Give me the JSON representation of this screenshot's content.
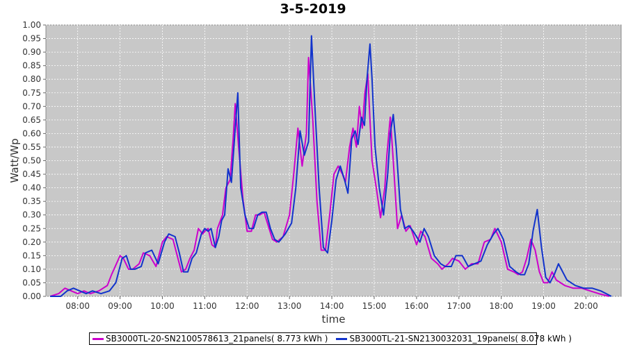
{
  "chart_data": {
    "type": "line",
    "title": "3-5-2019",
    "xlabel": "time",
    "ylabel": "Watt/Wp",
    "xlim": [
      7.25,
      20.83
    ],
    "ylim": [
      0,
      1.0
    ],
    "x_ticks": [
      8,
      9,
      10,
      11,
      12,
      13,
      14,
      15,
      16,
      17,
      18,
      19,
      20
    ],
    "x_tick_labels": [
      "08:00",
      "09:00",
      "10:00",
      "11:00",
      "12:00",
      "13:00",
      "14:00",
      "15:00",
      "16:00",
      "17:00",
      "18:00",
      "19:00",
      "20:00"
    ],
    "y_ticks": [
      0,
      0.05,
      0.1,
      0.15,
      0.2,
      0.25,
      0.3,
      0.35,
      0.4,
      0.45,
      0.5,
      0.55,
      0.6,
      0.65,
      0.7,
      0.75,
      0.8,
      0.85,
      0.9,
      0.95,
      1.0
    ],
    "y_tick_labels": [
      "0.00",
      "0.05",
      "0.10",
      "0.15",
      "0.20",
      "0.25",
      "0.30",
      "0.35",
      "0.40",
      "0.45",
      "0.50",
      "0.55",
      "0.60",
      "0.65",
      "0.70",
      "0.75",
      "0.80",
      "0.85",
      "0.90",
      "0.95",
      "1.00"
    ],
    "grid": true,
    "legend_position": "bottom",
    "series": [
      {
        "name": "SB3000TL-20-SN2100578613_21panels( 8.773 kWh )",
        "color": "#cc00cc",
        "x": [
          7.35,
          7.55,
          7.7,
          7.85,
          8.0,
          8.15,
          8.3,
          8.5,
          8.7,
          8.8,
          9.0,
          9.08,
          9.2,
          9.3,
          9.45,
          9.55,
          9.7,
          9.85,
          10.0,
          10.1,
          10.25,
          10.35,
          10.45,
          10.55,
          10.65,
          10.75,
          10.85,
          10.95,
          11.0,
          11.08,
          11.17,
          11.25,
          11.3,
          11.42,
          11.5,
          11.6,
          11.67,
          11.72,
          11.8,
          11.9,
          12.0,
          12.1,
          12.2,
          12.3,
          12.4,
          12.5,
          12.6,
          12.7,
          12.85,
          13.0,
          13.1,
          13.2,
          13.3,
          13.4,
          13.45,
          13.55,
          13.65,
          13.75,
          13.85,
          13.95,
          14.05,
          14.15,
          14.25,
          14.32,
          14.42,
          14.5,
          14.58,
          14.65,
          14.72,
          14.78,
          14.85,
          14.9,
          14.95,
          15.05,
          15.15,
          15.25,
          15.3,
          15.38,
          15.45,
          15.55,
          15.65,
          15.75,
          15.85,
          16.0,
          16.1,
          16.2,
          16.35,
          16.5,
          16.6,
          16.75,
          16.85,
          17.0,
          17.15,
          17.3,
          17.45,
          17.6,
          17.75,
          17.85,
          18.0,
          18.15,
          18.3,
          18.4,
          18.5,
          18.6,
          18.7,
          18.8,
          18.9,
          19.0,
          19.1,
          19.2,
          19.3,
          19.5,
          19.7,
          19.9,
          20.1,
          20.3,
          20.55
        ],
        "y": [
          0.0,
          0.01,
          0.03,
          0.02,
          0.01,
          0.02,
          0.01,
          0.02,
          0.04,
          0.08,
          0.15,
          0.14,
          0.1,
          0.1,
          0.12,
          0.16,
          0.15,
          0.11,
          0.2,
          0.22,
          0.21,
          0.15,
          0.09,
          0.1,
          0.14,
          0.17,
          0.25,
          0.23,
          0.24,
          0.25,
          0.19,
          0.18,
          0.25,
          0.3,
          0.4,
          0.43,
          0.58,
          0.71,
          0.55,
          0.36,
          0.24,
          0.24,
          0.3,
          0.3,
          0.31,
          0.26,
          0.21,
          0.2,
          0.22,
          0.3,
          0.45,
          0.62,
          0.48,
          0.6,
          0.88,
          0.65,
          0.35,
          0.17,
          0.17,
          0.3,
          0.45,
          0.48,
          0.45,
          0.42,
          0.55,
          0.62,
          0.55,
          0.7,
          0.62,
          0.75,
          0.82,
          0.65,
          0.5,
          0.4,
          0.29,
          0.4,
          0.52,
          0.66,
          0.5,
          0.25,
          0.3,
          0.24,
          0.26,
          0.19,
          0.24,
          0.22,
          0.14,
          0.12,
          0.1,
          0.12,
          0.14,
          0.13,
          0.1,
          0.12,
          0.12,
          0.2,
          0.21,
          0.25,
          0.2,
          0.1,
          0.09,
          0.08,
          0.09,
          0.14,
          0.21,
          0.17,
          0.09,
          0.05,
          0.05,
          0.09,
          0.06,
          0.04,
          0.03,
          0.03,
          0.02,
          0.01,
          0.0
        ]
      },
      {
        "name": "SB3000TL-21-SN2130032031_19panels( 8.078 kWh )",
        "color": "#1133cc",
        "x": [
          7.35,
          7.6,
          7.75,
          7.9,
          8.05,
          8.2,
          8.35,
          8.55,
          8.75,
          8.9,
          9.05,
          9.15,
          9.25,
          9.35,
          9.5,
          9.6,
          9.75,
          9.9,
          10.05,
          10.15,
          10.3,
          10.4,
          10.5,
          10.6,
          10.7,
          10.8,
          10.92,
          11.0,
          11.08,
          11.15,
          11.25,
          11.33,
          11.4,
          11.47,
          11.55,
          11.63,
          11.72,
          11.78,
          11.85,
          11.95,
          12.05,
          12.15,
          12.25,
          12.35,
          12.45,
          12.55,
          12.65,
          12.75,
          12.9,
          13.05,
          13.15,
          13.25,
          13.35,
          13.45,
          13.52,
          13.6,
          13.7,
          13.8,
          13.9,
          14.0,
          14.1,
          14.2,
          14.3,
          14.38,
          14.47,
          14.55,
          14.62,
          14.7,
          14.77,
          14.83,
          14.9,
          14.95,
          15.02,
          15.12,
          15.22,
          15.32,
          15.38,
          15.45,
          15.52,
          15.62,
          15.72,
          15.82,
          15.92,
          16.08,
          16.18,
          16.28,
          16.42,
          16.57,
          16.68,
          16.82,
          16.93,
          17.08,
          17.22,
          17.37,
          17.52,
          17.67,
          17.82,
          17.92,
          18.05,
          18.2,
          18.35,
          18.45,
          18.55,
          18.65,
          18.75,
          18.85,
          18.95,
          19.05,
          19.15,
          19.25,
          19.35,
          19.55,
          19.75,
          19.95,
          20.15,
          20.35,
          20.6
        ],
        "y": [
          0.0,
          0.0,
          0.02,
          0.03,
          0.02,
          0.01,
          0.02,
          0.01,
          0.02,
          0.05,
          0.14,
          0.15,
          0.1,
          0.1,
          0.11,
          0.16,
          0.17,
          0.12,
          0.2,
          0.23,
          0.22,
          0.16,
          0.09,
          0.09,
          0.14,
          0.16,
          0.23,
          0.25,
          0.24,
          0.25,
          0.18,
          0.22,
          0.28,
          0.3,
          0.47,
          0.42,
          0.62,
          0.75,
          0.4,
          0.3,
          0.25,
          0.25,
          0.3,
          0.31,
          0.31,
          0.25,
          0.21,
          0.2,
          0.23,
          0.27,
          0.4,
          0.61,
          0.52,
          0.57,
          0.96,
          0.7,
          0.4,
          0.18,
          0.16,
          0.28,
          0.43,
          0.48,
          0.43,
          0.38,
          0.58,
          0.61,
          0.56,
          0.66,
          0.63,
          0.8,
          0.93,
          0.8,
          0.55,
          0.4,
          0.3,
          0.45,
          0.6,
          0.67,
          0.55,
          0.32,
          0.25,
          0.26,
          0.24,
          0.2,
          0.25,
          0.22,
          0.15,
          0.12,
          0.11,
          0.11,
          0.15,
          0.15,
          0.11,
          0.12,
          0.13,
          0.19,
          0.23,
          0.25,
          0.21,
          0.11,
          0.09,
          0.08,
          0.08,
          0.12,
          0.24,
          0.32,
          0.18,
          0.07,
          0.05,
          0.08,
          0.12,
          0.06,
          0.04,
          0.03,
          0.03,
          0.02,
          0.0
        ]
      }
    ]
  }
}
